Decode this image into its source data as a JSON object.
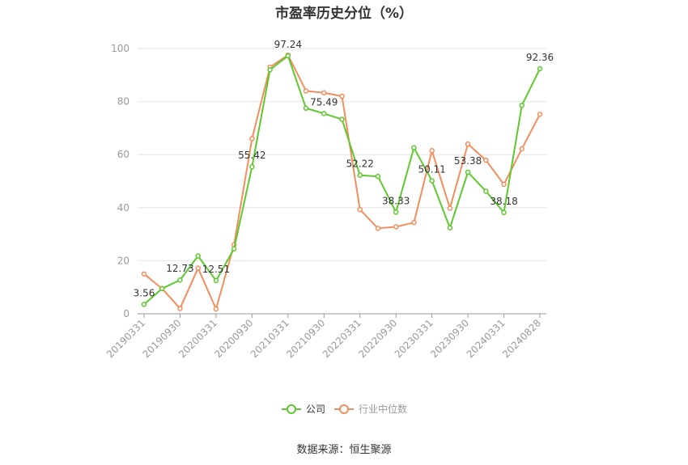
{
  "chart_data": {
    "type": "line",
    "title": "市盈率历史分位（%）",
    "ylim": [
      0,
      100
    ],
    "yticks": [
      0,
      20,
      40,
      60,
      80,
      100
    ],
    "x": [
      "20190331",
      "20190630",
      "20190930",
      "20191231",
      "20200331",
      "20200630",
      "20200930",
      "20201231",
      "20210331",
      "20210630",
      "20210930",
      "20211231",
      "20220331",
      "20220630",
      "20220930",
      "20221231",
      "20230331",
      "20230630",
      "20230930",
      "20231231",
      "20240331",
      "20240630",
      "20240828"
    ],
    "xtick_labels": [
      "20190331",
      "20190930",
      "20200331",
      "20200930",
      "20210331",
      "20210930",
      "20220331",
      "20220930",
      "20230331",
      "20230930",
      "20240331",
      "20240828"
    ],
    "series": [
      {
        "name": "公司",
        "color": "#5fc82f",
        "values": [
          3.56,
          9.5,
          12.73,
          21.8,
          12.51,
          24.5,
          55.42,
          92.0,
          97.24,
          77.5,
          75.49,
          73.3,
          52.22,
          51.8,
          38.33,
          62.6,
          50.11,
          32.4,
          53.38,
          46.2,
          38.18,
          78.6,
          92.36
        ]
      },
      {
        "name": "行业中位数",
        "color": "#f28e5e",
        "values": [
          15.0,
          9.5,
          2.0,
          17.2,
          1.8,
          26.0,
          66.0,
          93.0,
          97.5,
          84.0,
          83.3,
          82.0,
          39.3,
          32.2,
          32.8,
          34.4,
          61.5,
          39.8,
          64.0,
          57.9,
          48.8,
          62.2,
          75.2
        ]
      }
    ],
    "data_labels": [
      {
        "series": 0,
        "index": 0,
        "text": "3.56"
      },
      {
        "series": 0,
        "index": 2,
        "text": "12.73"
      },
      {
        "series": 0,
        "index": 4,
        "text": "12.51"
      },
      {
        "series": 0,
        "index": 6,
        "text": "55.42"
      },
      {
        "series": 0,
        "index": 8,
        "text": "97.24"
      },
      {
        "series": 0,
        "index": 10,
        "text": "75.49"
      },
      {
        "series": 0,
        "index": 12,
        "text": "52.22"
      },
      {
        "series": 0,
        "index": 14,
        "text": "38.33"
      },
      {
        "series": 0,
        "index": 16,
        "text": "50.11"
      },
      {
        "series": 0,
        "index": 18,
        "text": "53.38"
      },
      {
        "series": 0,
        "index": 20,
        "text": "38.18"
      },
      {
        "series": 0,
        "index": 22,
        "text": "92.36"
      }
    ],
    "legend": [
      "公司",
      "行业中位数"
    ],
    "legend_position": "bottom",
    "grid": true
  },
  "source_text": "数据来源：恒生聚源"
}
